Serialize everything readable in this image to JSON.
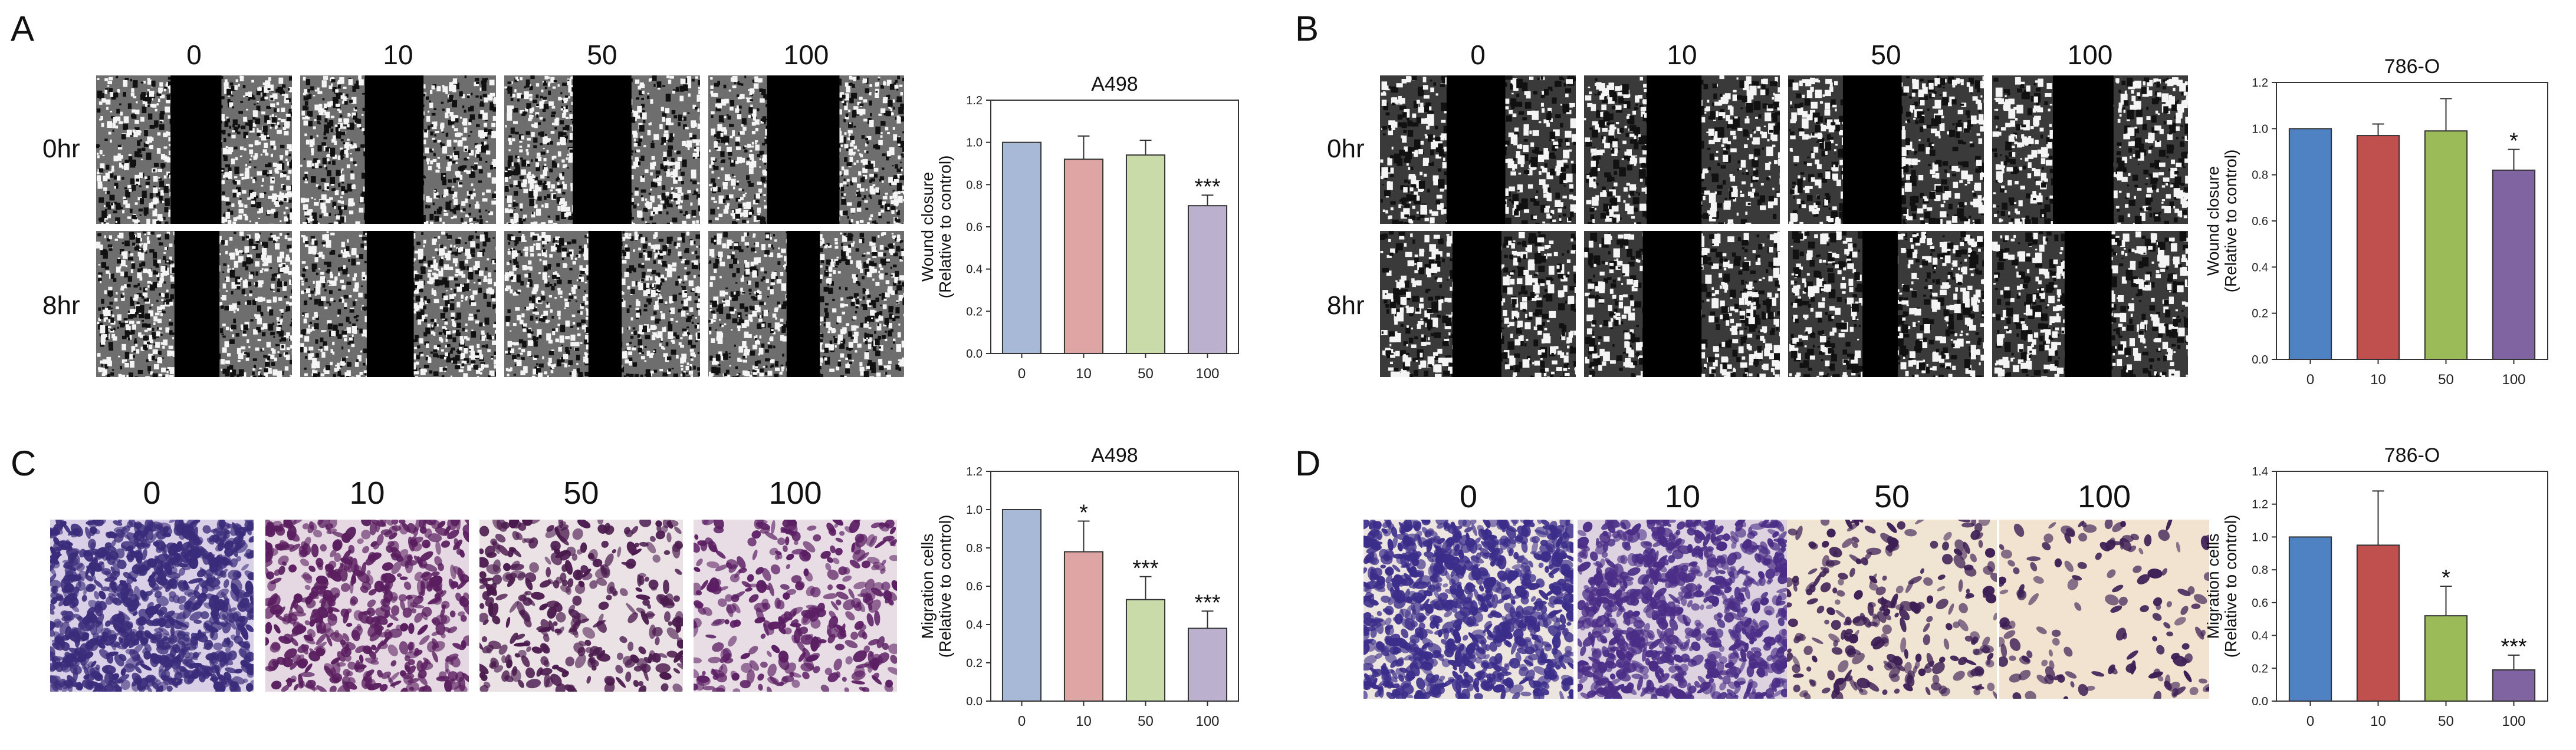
{
  "panels": {
    "A": {
      "letter": "A",
      "cols": [
        "0",
        "10",
        "50",
        "100"
      ],
      "rows": [
        "0hr",
        "8hr"
      ]
    },
    "B": {
      "letter": "B",
      "cols": [
        "0",
        "10",
        "50",
        "100"
      ],
      "rows": [
        "0hr",
        "8hr"
      ]
    },
    "C": {
      "letter": "C",
      "cols": [
        "0",
        "10",
        "50",
        "100"
      ]
    },
    "D": {
      "letter": "D",
      "cols": [
        "0",
        "10",
        "50",
        "100"
      ]
    }
  },
  "chart_data": [
    {
      "id": "A",
      "type": "bar",
      "title": "A498",
      "ylabel_lines": [
        "Wound closure",
        "(Relative to control)"
      ],
      "xlabel": "",
      "categories": [
        "0",
        "10",
        "50",
        "100"
      ],
      "values": [
        1.0,
        0.92,
        0.94,
        0.7
      ],
      "errors": [
        0,
        0.11,
        0.07,
        0.05
      ],
      "significance": [
        "",
        "",
        "",
        "***"
      ],
      "colors": [
        "#a8b9d8",
        "#dfa5a5",
        "#c9dba8",
        "#bcb0cf"
      ],
      "ylim": [
        0,
        1.2
      ],
      "yticks": [
        "0.0",
        "0.2",
        "0.4",
        "0.6",
        "0.8",
        "1.0",
        "1.2"
      ]
    },
    {
      "id": "B",
      "type": "bar",
      "title": "786-O",
      "ylabel_lines": [
        "Wound closure",
        "(Relative to control)"
      ],
      "xlabel": "",
      "categories": [
        "0",
        "10",
        "50",
        "100"
      ],
      "values": [
        1.0,
        0.97,
        0.99,
        0.82
      ],
      "errors": [
        0,
        0.05,
        0.14,
        0.09
      ],
      "significance": [
        "",
        "",
        "",
        "*"
      ],
      "colors": [
        "#4f82c2",
        "#c0504d",
        "#9bbb59",
        "#8064a2"
      ],
      "ylim": [
        0,
        1.2
      ],
      "yticks": [
        "0.0",
        "0.2",
        "0.4",
        "0.6",
        "0.8",
        "1.0",
        "1.2"
      ]
    },
    {
      "id": "C",
      "type": "bar",
      "title": "A498",
      "ylabel_lines": [
        "Migration cells",
        "(Relative to control)"
      ],
      "xlabel": "",
      "categories": [
        "0",
        "10",
        "50",
        "100"
      ],
      "values": [
        1.0,
        0.78,
        0.53,
        0.38
      ],
      "errors": [
        0,
        0.16,
        0.12,
        0.09
      ],
      "significance": [
        "",
        "*",
        "***",
        "***"
      ],
      "colors": [
        "#a8b9d8",
        "#dfa5a5",
        "#c9dba8",
        "#bcb0cf"
      ],
      "ylim": [
        0,
        1.2
      ],
      "yticks": [
        "0.0",
        "0.2",
        "0.4",
        "0.6",
        "0.8",
        "1.0",
        "1.2"
      ]
    },
    {
      "id": "D",
      "type": "bar",
      "title": "786-O",
      "ylabel_lines": [
        "Migration cells",
        "(Relative to control)"
      ],
      "xlabel": "",
      "categories": [
        "0",
        "10",
        "50",
        "100"
      ],
      "values": [
        1.0,
        0.95,
        0.52,
        0.19
      ],
      "errors": [
        0,
        0.33,
        0.18,
        0.09
      ],
      "significance": [
        "",
        "",
        "*",
        "***"
      ],
      "colors": [
        "#4f82c2",
        "#c0504d",
        "#9bbb59",
        "#8064a2"
      ],
      "ylim": [
        0,
        1.4
      ],
      "yticks": [
        "0.0",
        "0.2",
        "0.4",
        "0.6",
        "0.8",
        "1.0",
        "1.2",
        "1.4"
      ]
    }
  ]
}
